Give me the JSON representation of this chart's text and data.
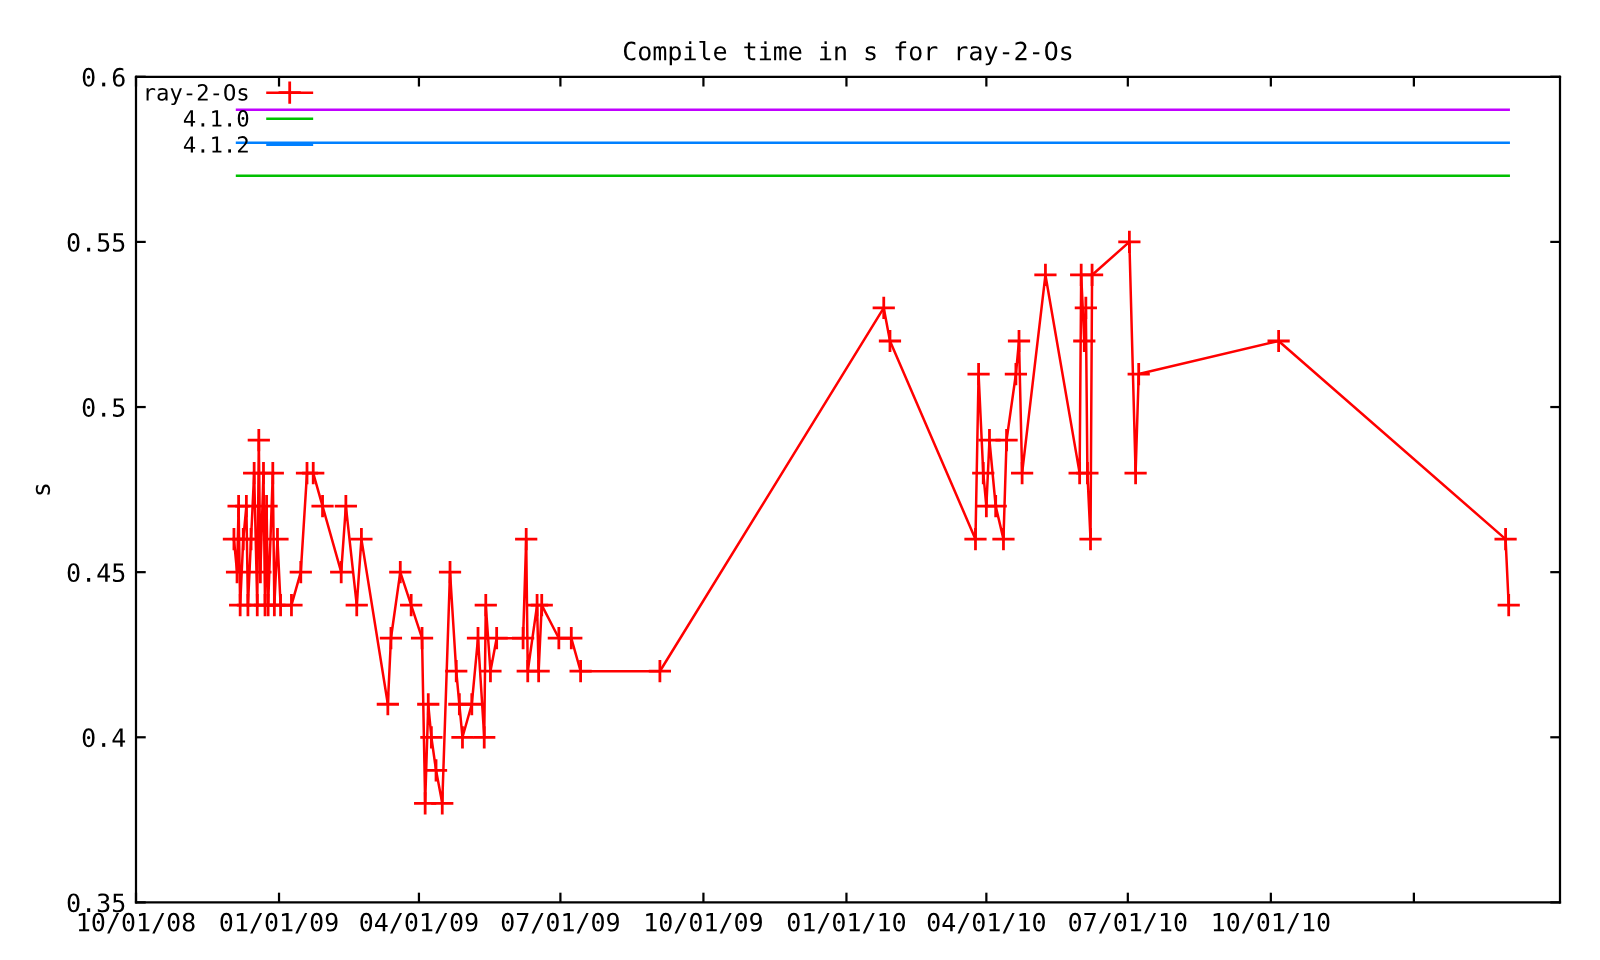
{
  "chart_data": {
    "type": "line",
    "title": "Compile time in s for ray-2-Os",
    "ylabel": "s",
    "xlim": [
      "2008-10-01",
      "2011-04-05"
    ],
    "xticks": [
      {
        "value": "2008-10-01",
        "label": "10/01/08"
      },
      {
        "value": "2009-01-01",
        "label": "01/01/09"
      },
      {
        "value": "2009-04-01",
        "label": "04/01/09"
      },
      {
        "value": "2009-07-01",
        "label": "07/01/09"
      },
      {
        "value": "2009-10-01",
        "label": "10/01/09"
      },
      {
        "value": "2010-01-01",
        "label": "01/01/10"
      },
      {
        "value": "2010-04-01",
        "label": "04/01/10"
      },
      {
        "value": "2010-07-01",
        "label": "07/01/10"
      },
      {
        "value": "2010-10-01",
        "label": "10/01/10"
      },
      {
        "value": "2011-01-01",
        "label": null
      }
    ],
    "ylim": [
      0.35,
      0.6
    ],
    "yticks": [
      0.35,
      0.4,
      0.45,
      0.5,
      0.55,
      0.6
    ],
    "grid": false,
    "legend": "top left",
    "series": [
      {
        "name": "ray-2-Os",
        "color": "#ff0000",
        "marker": "cross",
        "x": [
          "2008-12-03",
          "2008-12-05",
          "2008-12-06",
          "2008-12-07",
          "2008-12-09",
          "2008-12-11",
          "2008-12-12",
          "2008-12-14",
          "2008-12-16",
          "2008-12-18",
          "2008-12-19",
          "2008-12-20",
          "2008-12-22",
          "2008-12-23",
          "2008-12-24",
          "2008-12-25",
          "2008-12-28",
          "2008-12-29",
          "2008-12-31",
          "2009-01-02",
          "2009-01-09",
          "2009-01-15",
          "2009-01-19",
          "2009-01-23",
          "2009-01-29",
          "2009-02-10",
          "2009-02-13",
          "2009-02-20",
          "2009-02-23",
          "2009-03-12",
          "2009-03-14",
          "2009-03-20",
          "2009-03-27",
          "2009-04-03",
          "2009-04-05",
          "2009-04-07",
          "2009-04-09",
          "2009-04-12",
          "2009-04-16",
          "2009-04-21",
          "2009-04-25",
          "2009-04-27",
          "2009-04-29",
          "2009-05-05",
          "2009-05-09",
          "2009-05-13",
          "2009-05-14",
          "2009-05-17",
          "2009-05-21",
          "2009-06-07",
          "2009-06-09",
          "2009-06-10",
          "2009-06-16",
          "2009-06-17",
          "2009-06-19",
          "2009-06-30",
          "2009-07-08",
          "2009-07-14",
          "2009-09-03",
          "2010-01-25",
          "2010-01-29",
          "2010-03-25",
          "2010-03-27",
          "2010-03-30",
          "2010-04-01",
          "2010-04-03",
          "2010-04-07",
          "2010-04-12",
          "2010-04-14",
          "2010-04-20",
          "2010-04-22",
          "2010-04-24",
          "2010-05-09",
          "2010-05-31",
          "2010-06-01",
          "2010-06-03",
          "2010-06-04",
          "2010-06-05",
          "2010-06-07",
          "2010-06-08",
          "2010-07-02",
          "2010-07-06",
          "2010-07-08",
          "2010-10-06",
          "2011-03-01",
          "2011-03-03"
        ],
        "values": [
          0.46,
          0.45,
          0.47,
          0.44,
          0.46,
          0.47,
          0.44,
          0.46,
          0.48,
          0.44,
          0.49,
          0.45,
          0.48,
          0.44,
          0.47,
          0.44,
          0.48,
          0.44,
          0.46,
          0.44,
          0.44,
          0.45,
          0.48,
          0.48,
          0.47,
          0.45,
          0.47,
          0.44,
          0.46,
          0.41,
          0.43,
          0.45,
          0.44,
          0.43,
          0.38,
          0.41,
          0.4,
          0.39,
          0.38,
          0.45,
          0.42,
          0.41,
          0.4,
          0.41,
          0.43,
          0.4,
          0.44,
          0.42,
          0.43,
          0.43,
          0.46,
          0.42,
          0.44,
          0.42,
          0.44,
          0.43,
          0.43,
          0.42,
          0.42,
          0.53,
          0.52,
          0.46,
          0.51,
          0.48,
          0.47,
          0.49,
          0.47,
          0.46,
          0.49,
          0.51,
          0.52,
          0.48,
          0.54,
          0.48,
          0.54,
          0.52,
          0.53,
          0.48,
          0.46,
          0.54,
          0.55,
          0.48,
          0.51,
          0.52,
          0.46,
          0.44
        ]
      },
      {
        "name": "4.1.0",
        "color": "#00c000",
        "x": [
          "2008-12-05",
          "2011-03-03"
        ],
        "values": [
          0.57,
          0.57
        ]
      },
      {
        "name": "4.1.2",
        "color": "#0080ff",
        "x": [
          "2008-12-05",
          "2011-03-03"
        ],
        "values": [
          0.58,
          0.58
        ]
      },
      {
        "color": "#c000ff",
        "x": [
          "2008-12-05",
          "2011-03-03"
        ],
        "values": [
          0.59,
          0.59
        ]
      }
    ]
  }
}
